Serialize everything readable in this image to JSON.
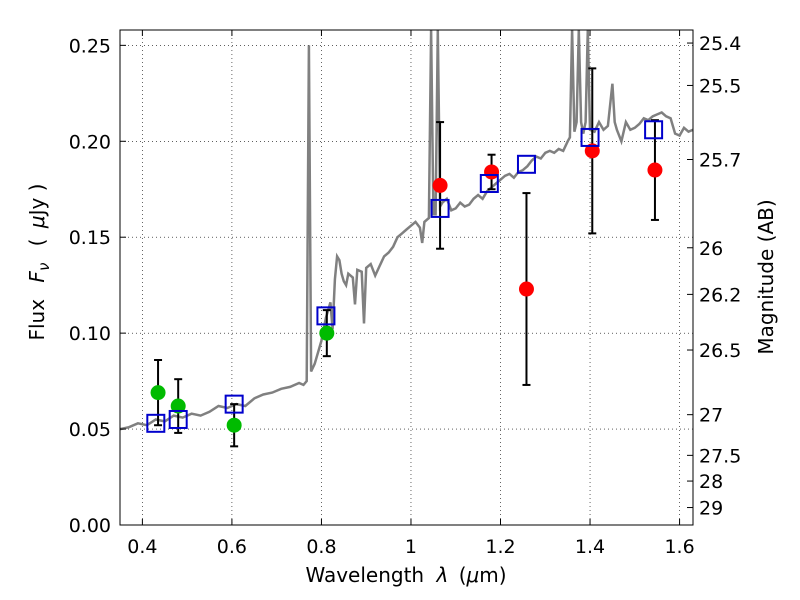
{
  "chart_data": {
    "type": "scatter",
    "xlabel": "Wavelength",
    "xlabel_symbol": "λ",
    "xlabel_unit_open": "(",
    "xlabel_unit_mu": "μ",
    "xlabel_unit_rest": "m)",
    "ylabel": "Flux",
    "ylabel_symbol": "F",
    "ylabel_symbol_sub": "ν",
    "ylabel_unit_open": "(",
    "ylabel_unit_mu": "μ",
    "ylabel_unit_rest": "Jy )",
    "y2label": "Magnitude (AB)",
    "xlim": [
      0.35,
      1.63
    ],
    "ylim": [
      0.0,
      0.258
    ],
    "grid": true,
    "x_ticks": [
      {
        "v": 0.4,
        "label": "0.4"
      },
      {
        "v": 0.6,
        "label": "0.6"
      },
      {
        "v": 0.8,
        "label": "0.8"
      },
      {
        "v": 1.0,
        "label": "1"
      },
      {
        "v": 1.2,
        "label": "1.2"
      },
      {
        "v": 1.4,
        "label": "1.4"
      },
      {
        "v": 1.6,
        "label": "1.6"
      }
    ],
    "y_ticks": [
      {
        "v": 0.0,
        "label": "0.00"
      },
      {
        "v": 0.05,
        "label": "0.05"
      },
      {
        "v": 0.1,
        "label": "0.10"
      },
      {
        "v": 0.15,
        "label": "0.15"
      },
      {
        "v": 0.2,
        "label": "0.20"
      },
      {
        "v": 0.25,
        "label": "0.25"
      }
    ],
    "mag_ticks": [
      {
        "v": 0.2512,
        "label": "25.4"
      },
      {
        "v": 0.2291,
        "label": "25.5"
      },
      {
        "v": 0.1905,
        "label": "25.7"
      },
      {
        "v": 0.1445,
        "label": "26"
      },
      {
        "v": 0.1202,
        "label": "26.2"
      },
      {
        "v": 0.0912,
        "label": "26.5"
      },
      {
        "v": 0.0575,
        "label": "27"
      },
      {
        "v": 0.0363,
        "label": "27.5"
      },
      {
        "v": 0.0229,
        "label": "28"
      },
      {
        "v": 0.0091,
        "label": "29"
      }
    ],
    "model_spectrum": {
      "name": "model SED",
      "color": "#808080",
      "points": [
        [
          0.35,
          0.05
        ],
        [
          0.37,
          0.051
        ],
        [
          0.39,
          0.053
        ],
        [
          0.41,
          0.052
        ],
        [
          0.43,
          0.055
        ],
        [
          0.45,
          0.054
        ],
        [
          0.47,
          0.057
        ],
        [
          0.49,
          0.056
        ],
        [
          0.51,
          0.058
        ],
        [
          0.53,
          0.057
        ],
        [
          0.55,
          0.059
        ],
        [
          0.57,
          0.062
        ],
        [
          0.59,
          0.061
        ],
        [
          0.61,
          0.063
        ],
        [
          0.63,
          0.062
        ],
        [
          0.65,
          0.066
        ],
        [
          0.67,
          0.068
        ],
        [
          0.69,
          0.069
        ],
        [
          0.71,
          0.071
        ],
        [
          0.73,
          0.072
        ],
        [
          0.75,
          0.074
        ],
        [
          0.76,
          0.073
        ],
        [
          0.767,
          0.075
        ],
        [
          0.772,
          0.25
        ],
        [
          0.777,
          0.08
        ],
        [
          0.785,
          0.084
        ],
        [
          0.8,
          0.096
        ],
        [
          0.81,
          0.108
        ],
        [
          0.815,
          0.112
        ],
        [
          0.82,
          0.116
        ],
        [
          0.825,
          0.102
        ],
        [
          0.83,
          0.128
        ],
        [
          0.835,
          0.14
        ],
        [
          0.84,
          0.138
        ],
        [
          0.845,
          0.131
        ],
        [
          0.85,
          0.127
        ],
        [
          0.855,
          0.125
        ],
        [
          0.86,
          0.131
        ],
        [
          0.87,
          0.129
        ],
        [
          0.875,
          0.115
        ],
        [
          0.88,
          0.133
        ],
        [
          0.89,
          0.132
        ],
        [
          0.895,
          0.105
        ],
        [
          0.9,
          0.134
        ],
        [
          0.91,
          0.136
        ],
        [
          0.92,
          0.13
        ],
        [
          0.93,
          0.135
        ],
        [
          0.94,
          0.14
        ],
        [
          0.95,
          0.142
        ],
        [
          0.96,
          0.145
        ],
        [
          0.97,
          0.15
        ],
        [
          0.98,
          0.152
        ],
        [
          0.99,
          0.154
        ],
        [
          1.0,
          0.156
        ],
        [
          1.01,
          0.158
        ],
        [
          1.02,
          0.155
        ],
        [
          1.025,
          0.147
        ],
        [
          1.03,
          0.158
        ],
        [
          1.04,
          0.16
        ],
        [
          1.045,
          0.258
        ],
        [
          1.05,
          0.162
        ],
        [
          1.055,
          0.162
        ],
        [
          1.06,
          0.258
        ],
        [
          1.065,
          0.166
        ],
        [
          1.07,
          0.168
        ],
        [
          1.08,
          0.17
        ],
        [
          1.09,
          0.164
        ],
        [
          1.1,
          0.165
        ],
        [
          1.11,
          0.168
        ],
        [
          1.12,
          0.166
        ],
        [
          1.13,
          0.167
        ],
        [
          1.14,
          0.17
        ],
        [
          1.15,
          0.172
        ],
        [
          1.16,
          0.17
        ],
        [
          1.17,
          0.174
        ],
        [
          1.18,
          0.176
        ],
        [
          1.19,
          0.178
        ],
        [
          1.2,
          0.18
        ],
        [
          1.21,
          0.182
        ],
        [
          1.22,
          0.183
        ],
        [
          1.23,
          0.181
        ],
        [
          1.24,
          0.184
        ],
        [
          1.25,
          0.185
        ],
        [
          1.26,
          0.187
        ],
        [
          1.27,
          0.19
        ],
        [
          1.28,
          0.192
        ],
        [
          1.29,
          0.191
        ],
        [
          1.3,
          0.194
        ],
        [
          1.31,
          0.195
        ],
        [
          1.32,
          0.194
        ],
        [
          1.33,
          0.196
        ],
        [
          1.34,
          0.195
        ],
        [
          1.35,
          0.2
        ],
        [
          1.355,
          0.202
        ],
        [
          1.36,
          0.258
        ],
        [
          1.365,
          0.205
        ],
        [
          1.37,
          0.21
        ],
        [
          1.375,
          0.258
        ],
        [
          1.38,
          0.21
        ],
        [
          1.385,
          0.204
        ],
        [
          1.39,
          0.21
        ],
        [
          1.395,
          0.258
        ],
        [
          1.4,
          0.206
        ],
        [
          1.41,
          0.205
        ],
        [
          1.42,
          0.21
        ],
        [
          1.43,
          0.206
        ],
        [
          1.44,
          0.208
        ],
        [
          1.45,
          0.23
        ],
        [
          1.455,
          0.21
        ],
        [
          1.46,
          0.206
        ],
        [
          1.47,
          0.2
        ],
        [
          1.48,
          0.21
        ],
        [
          1.49,
          0.206
        ],
        [
          1.5,
          0.207
        ],
        [
          1.51,
          0.209
        ],
        [
          1.52,
          0.212
        ],
        [
          1.53,
          0.211
        ],
        [
          1.54,
          0.213
        ],
        [
          1.55,
          0.214
        ],
        [
          1.56,
          0.215
        ],
        [
          1.57,
          0.213
        ],
        [
          1.58,
          0.212
        ],
        [
          1.59,
          0.204
        ],
        [
          1.6,
          0.203
        ],
        [
          1.61,
          0.207
        ],
        [
          1.62,
          0.205
        ],
        [
          1.63,
          0.206
        ]
      ]
    },
    "series": [
      {
        "name": "green observed",
        "color": "#00bb00",
        "points": [
          {
            "x": 0.435,
            "y": 0.069,
            "err": 0.017
          },
          {
            "x": 0.48,
            "y": 0.062,
            "err": 0.014
          },
          {
            "x": 0.605,
            "y": 0.052,
            "err": 0.011
          },
          {
            "x": 0.812,
            "y": 0.1,
            "err": 0.012
          }
        ]
      },
      {
        "name": "red observed",
        "color": "#ff0000",
        "points": [
          {
            "x": 1.065,
            "y": 0.177,
            "err": 0.033
          },
          {
            "x": 1.18,
            "y": 0.184,
            "err": 0.009
          },
          {
            "x": 1.258,
            "y": 0.123,
            "err": 0.05
          },
          {
            "x": 1.405,
            "y": 0.195,
            "err": 0.043
          },
          {
            "x": 1.545,
            "y": 0.185,
            "err": 0.026
          }
        ]
      },
      {
        "name": "model photometry",
        "color": "#0000cc",
        "marker": "square",
        "points": [
          {
            "x": 0.43,
            "y": 0.053
          },
          {
            "x": 0.48,
            "y": 0.055
          },
          {
            "x": 0.605,
            "y": 0.063
          },
          {
            "x": 0.81,
            "y": 0.109
          },
          {
            "x": 1.065,
            "y": 0.165
          },
          {
            "x": 1.175,
            "y": 0.178
          },
          {
            "x": 1.258,
            "y": 0.188
          },
          {
            "x": 1.4,
            "y": 0.202
          },
          {
            "x": 1.542,
            "y": 0.206
          }
        ]
      }
    ]
  }
}
